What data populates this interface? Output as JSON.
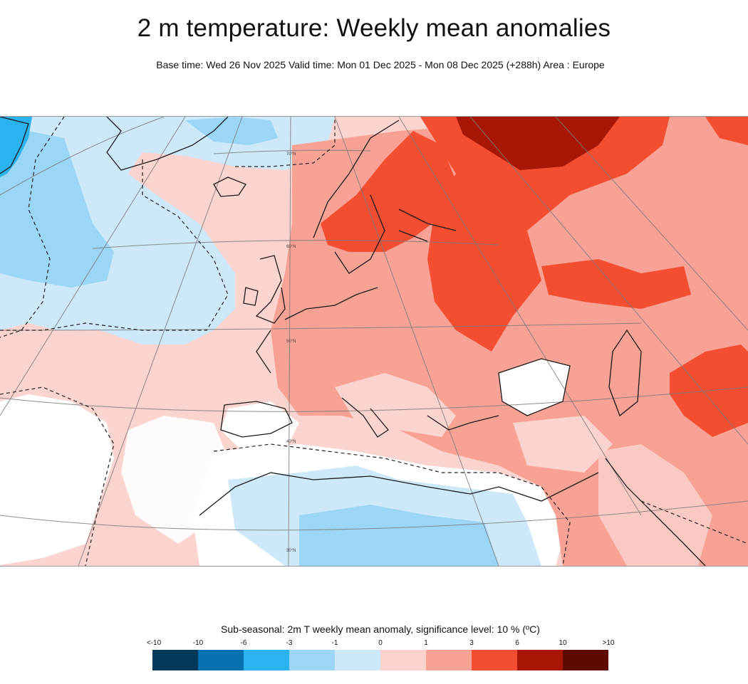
{
  "header": {
    "title": "2 m temperature: Weekly mean anomalies",
    "subtitle": "Base time: Wed 26 Nov 2025 Valid time: Mon 01 Dec 2025 - Mon 08 Dec 2025 (+288h) Area : Europe"
  },
  "map": {
    "region": "Europe",
    "lat_labels": [
      "70°N",
      "60°N",
      "50°N",
      "40°N",
      "30°N"
    ],
    "anomaly_fields": [
      {
        "id": "greenland-cold",
        "category": "-6..-3"
      },
      {
        "id": "north-atlantic-cool",
        "category": "-3..-1"
      },
      {
        "id": "west-atlantic-cool",
        "category": "-3..-1"
      },
      {
        "id": "north-africa-cool",
        "category": "-3..-1"
      },
      {
        "id": "libya-egypt-cool",
        "category": "-3..-1"
      },
      {
        "id": "central-atlantic-neutral",
        "category": "-1..0"
      },
      {
        "id": "scandinavia-warm",
        "category": "3..6"
      },
      {
        "id": "russia-warm",
        "category": "3..6"
      },
      {
        "id": "northern-russia-very-warm",
        "category": "6..10"
      },
      {
        "id": "caspian-warm",
        "category": "3..6"
      },
      {
        "id": "kazakhstan-warm",
        "category": "3..6"
      },
      {
        "id": "europe-mild",
        "category": "1..3"
      }
    ]
  },
  "legend": {
    "title": "Sub-seasonal: 2m T weekly mean anomaly, significance level: 10 % (ºC)",
    "ticks": [
      "<-10",
      "-10",
      "-6",
      "-3",
      "-1",
      "0",
      "1",
      "3",
      "6",
      "10",
      ">10"
    ],
    "colors": [
      "#023858",
      "#0570b0",
      "#2ab3ef",
      "#9bd6f6",
      "#cde9f9",
      "#fbd3cf",
      "#f7a294",
      "#f34e32",
      "#a81605",
      "#5e0a02"
    ]
  }
}
